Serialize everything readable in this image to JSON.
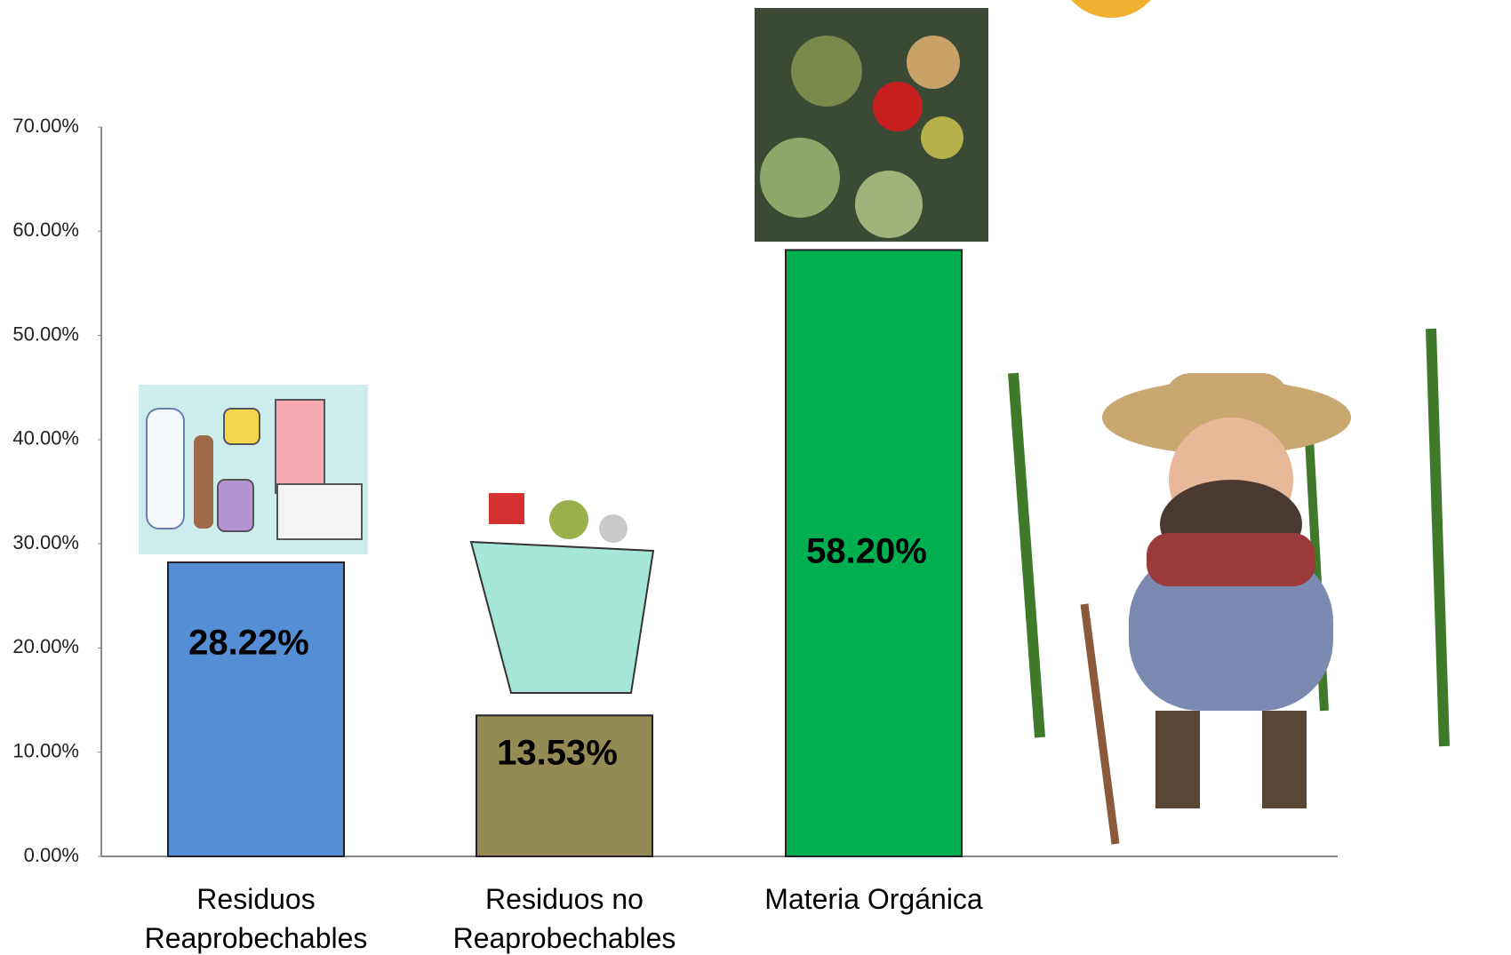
{
  "chart_data": {
    "type": "bar",
    "categories": [
      "Residuos Reaprobechables",
      "Residuos no Reaprobechables",
      "Materia Orgánica"
    ],
    "values": [
      28.22,
      13.53,
      58.2
    ],
    "value_labels": [
      "28.22%",
      "13.53%",
      "58.20%"
    ],
    "colors": [
      "#558ed5",
      "#948a54",
      "#00b050"
    ],
    "ylim": [
      0,
      70
    ],
    "yticks": [
      {
        "value": 0,
        "label": "0.00%"
      },
      {
        "value": 10,
        "label": "10.00%"
      },
      {
        "value": 20,
        "label": "20.00%"
      },
      {
        "value": 30,
        "label": "30.00%"
      },
      {
        "value": 40,
        "label": "40.00%"
      },
      {
        "value": 50,
        "label": "50.00%"
      },
      {
        "value": 60,
        "label": "60.00%"
      },
      {
        "value": 70,
        "label": "70.00%"
      }
    ],
    "grid": false
  }
}
